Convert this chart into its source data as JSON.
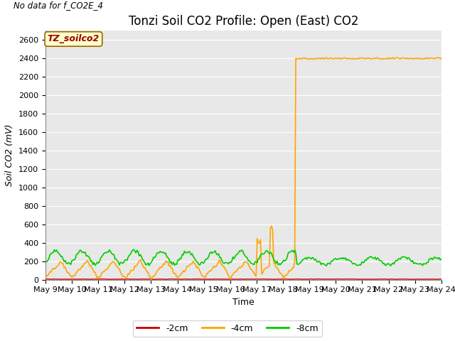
{
  "title": "Tonzi Soil CO2 Profile: Open (East) CO2",
  "no_data_text": "No data for f_CO2E_4",
  "ylabel": "Soil CO2 (mV)",
  "xlabel": "Time",
  "legend_box_label": "TZ_soilco2",
  "legend_box_bg": "#FFFFCC",
  "legend_box_edge": "#996600",
  "bg_color": "#E8E8E8",
  "ylim": [
    0,
    2700
  ],
  "yticks": [
    0,
    200,
    400,
    600,
    800,
    1000,
    1200,
    1400,
    1600,
    1800,
    2000,
    2200,
    2400,
    2600
  ],
  "colors": {
    "2cm": "#CC0000",
    "4cm": "#FFA500",
    "8cm": "#00CC00"
  },
  "line_widths": {
    "2cm": 1.0,
    "4cm": 1.2,
    "8cm": 1.2
  },
  "title_fontsize": 12,
  "axis_fontsize": 9,
  "tick_fontsize": 8,
  "no_data_fontsize": 8.5
}
